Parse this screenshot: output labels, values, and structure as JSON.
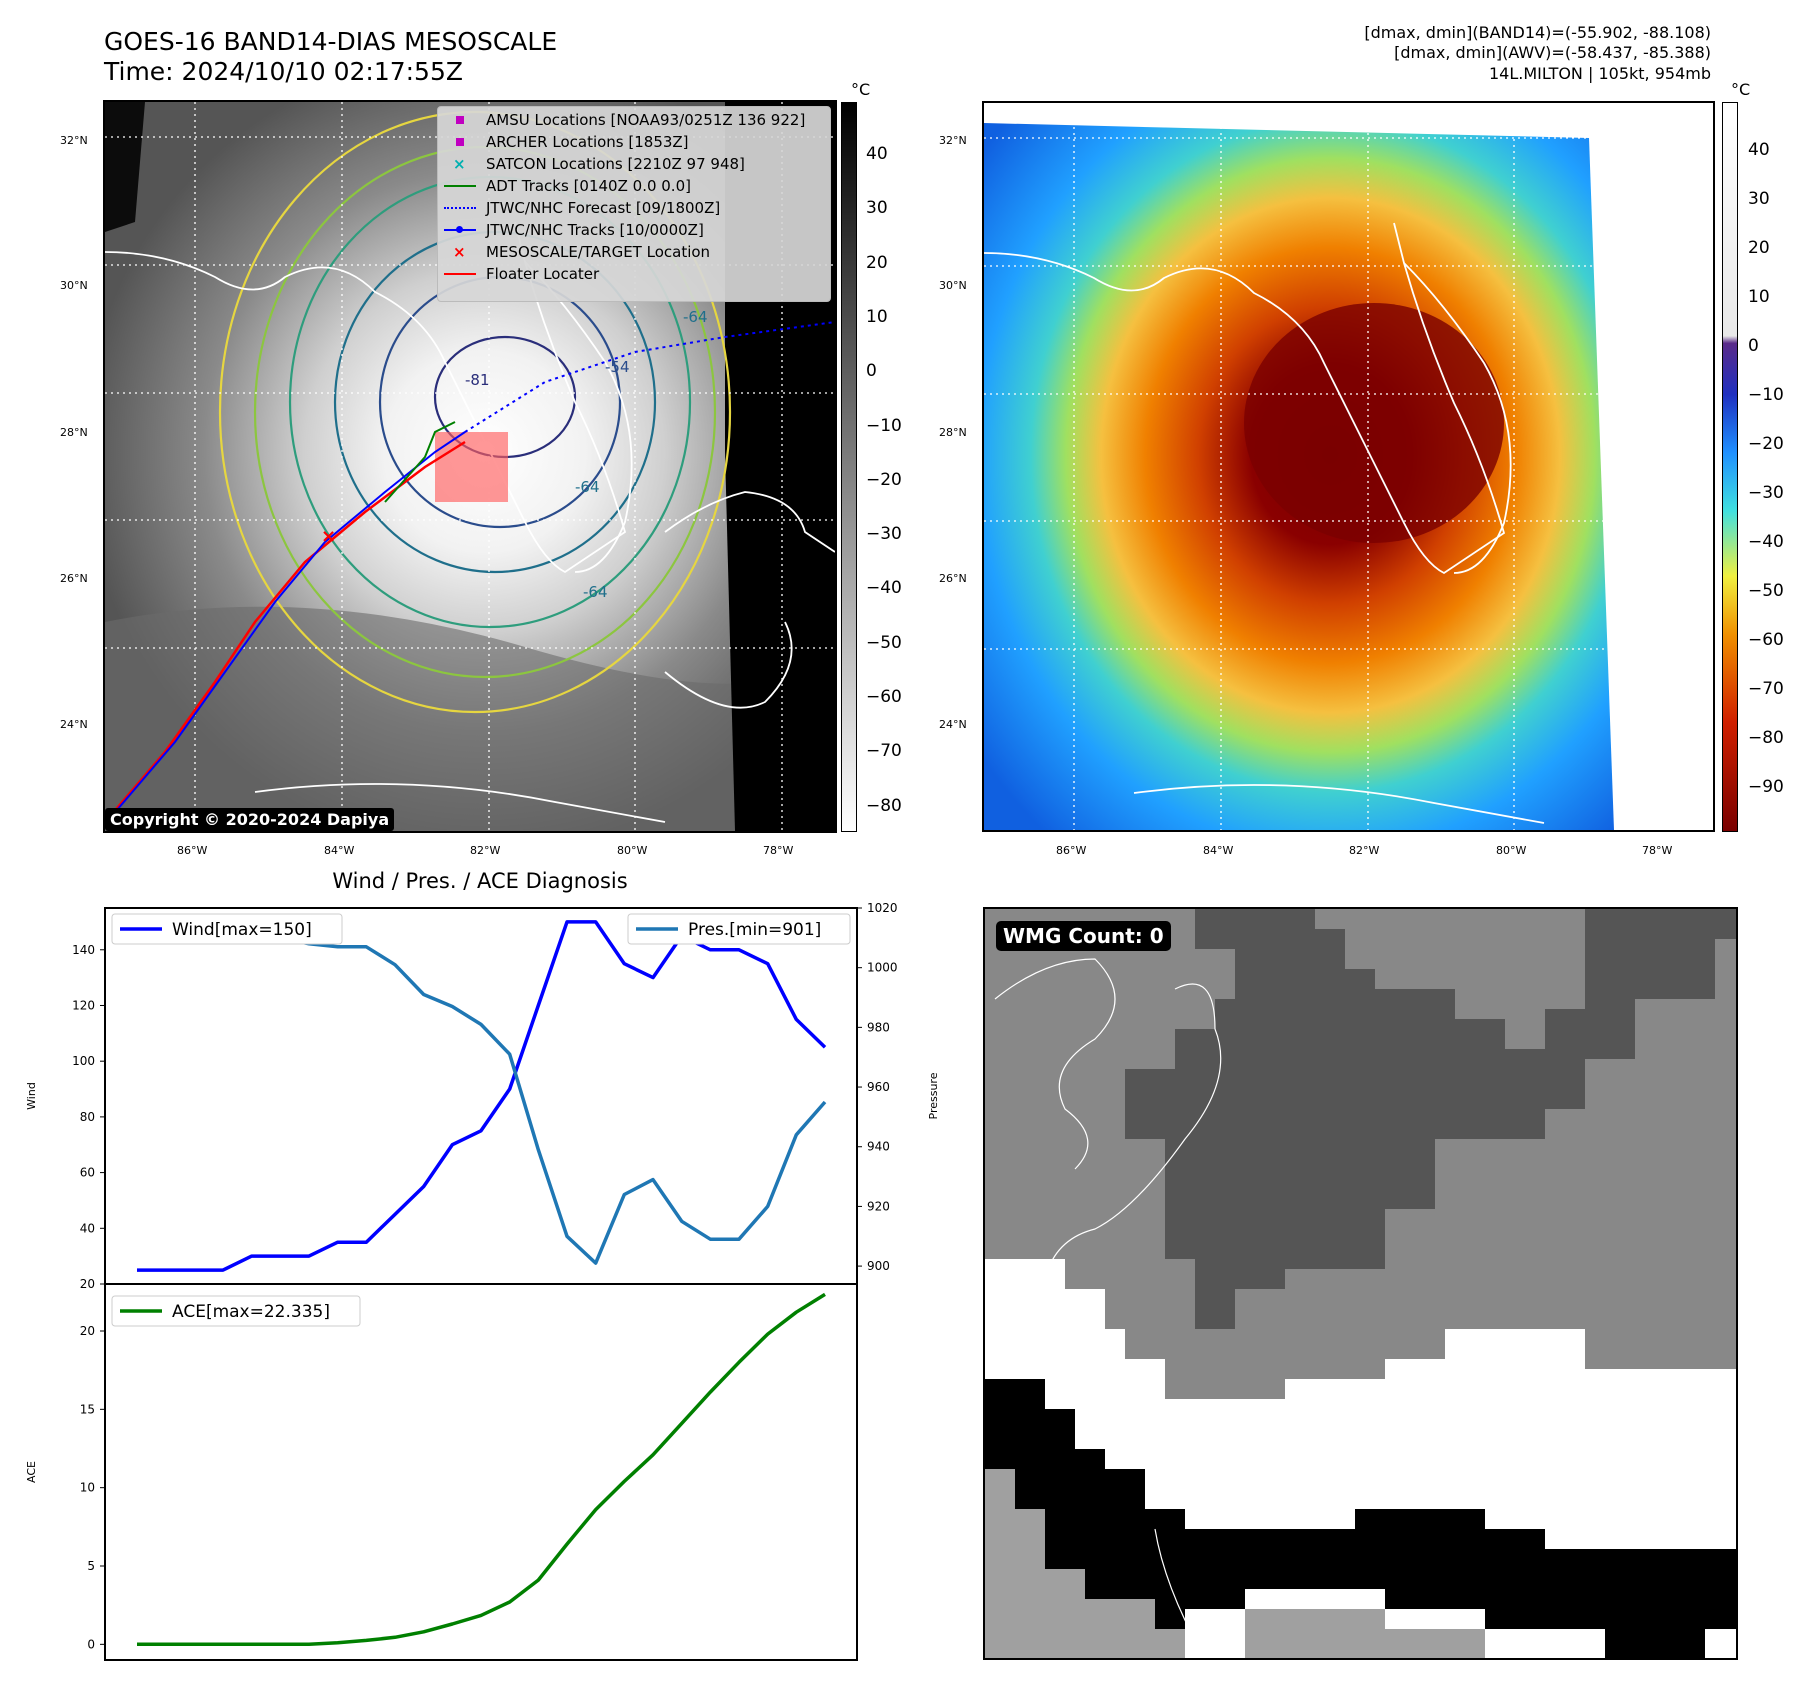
{
  "header": {
    "title_line1": "GOES-16 BAND14-DIAS MESOSCALE",
    "title_line2": "Time: 2024/10/10 02:17:55Z",
    "stats_line1": "[dmax, dmin](BAND14)=(-55.902, -88.108)",
    "stats_line2": "[dmax, dmin](AWV)=(-58.437, -85.388)",
    "stats_line3": "14L.MILTON | 105kt, 954mb"
  },
  "map_axes": {
    "lat_labels": [
      "32°N",
      "30°N",
      "28°N",
      "26°N",
      "24°N"
    ],
    "lon_labels": [
      "86°W",
      "84°W",
      "82°W",
      "80°W",
      "78°W"
    ]
  },
  "ir_panel": {
    "colorbar_unit": "°C",
    "colorbar_ticks": [
      "40",
      "30",
      "20",
      "10",
      "0",
      "−10",
      "−20",
      "−30",
      "−40",
      "−50",
      "−60",
      "−70",
      "−80"
    ],
    "contour_labels": [
      "-81",
      "-64",
      "-64",
      "-64",
      "-54"
    ],
    "legend": [
      {
        "label": "AMSU Locations [NOAA93/0251Z 136 922]",
        "color": "#c000c0"
      },
      {
        "label": "ARCHER Locations [1853Z]",
        "color": "#c000c0"
      },
      {
        "label": "SATCON Locations [2210Z 97 948]",
        "color": "#00b0b0"
      },
      {
        "label": "ADT Tracks [0140Z 0.0 0.0]",
        "color": "#008000"
      },
      {
        "label": "JTWC/NHC Forecast [09/1800Z]",
        "color": "#0000ff"
      },
      {
        "label": "JTWC/NHC Tracks [10/0000Z]",
        "color": "#0000ff"
      },
      {
        "label": "MESOSCALE/TARGET Location",
        "color": "#ff0000"
      },
      {
        "label": "Floater Locater",
        "color": "#ff0000"
      }
    ],
    "copyright": "Copyright © 2020-2024 Dapiya"
  },
  "awv_panel": {
    "colorbar_unit": "°C",
    "colorbar_ticks": [
      "40",
      "30",
      "20",
      "10",
      "0",
      "−10",
      "−20",
      "−30",
      "−40",
      "−50",
      "−60",
      "−70",
      "−80",
      "−90"
    ]
  },
  "wmg_panel": {
    "label": "WMG Count: 0"
  },
  "chart_data": [
    {
      "type": "line",
      "title": "Wind / Pres. / ACE Diagnosis",
      "xlabel": "",
      "ylabel": "Wind",
      "ylabel_right": "Pressure",
      "ylim": [
        20,
        155
      ],
      "ylim_right": [
        894,
        1020
      ],
      "yticks": [
        20,
        40,
        60,
        80,
        100,
        120,
        140
      ],
      "yticks_right": [
        900,
        920,
        940,
        960,
        980,
        1000,
        1020
      ],
      "x": [
        0,
        1,
        2,
        3,
        4,
        5,
        6,
        7,
        8,
        9,
        10,
        11,
        12,
        13,
        14,
        15,
        16,
        17,
        18,
        19,
        20,
        21,
        22,
        23,
        24
      ],
      "series": [
        {
          "name": "Wind[max=150]",
          "color": "#0000ff",
          "values": [
            25,
            25,
            25,
            25,
            30,
            30,
            30,
            35,
            35,
            45,
            55,
            70,
            75,
            90,
            120,
            150,
            150,
            135,
            130,
            145,
            140,
            140,
            135,
            115,
            105
          ]
        },
        {
          "name": "Pres.[min=901]",
          "color": "#1f77b4",
          "values": [
            1015,
            1015,
            1015,
            1015,
            1010,
            1010,
            1008,
            1007,
            1007,
            1001,
            991,
            987,
            981,
            971,
            939,
            910,
            901,
            924,
            929,
            915,
            909,
            909,
            920,
            944,
            955
          ]
        }
      ]
    },
    {
      "type": "line",
      "title": "",
      "xlabel": "",
      "ylabel": "ACE",
      "ylim": [
        -1,
        23
      ],
      "yticks": [
        0,
        5,
        10,
        15,
        20
      ],
      "x": [
        0,
        1,
        2,
        3,
        4,
        5,
        6,
        7,
        8,
        9,
        10,
        11,
        12,
        13,
        14,
        15,
        16,
        17,
        18,
        19,
        20,
        21,
        22,
        23,
        24
      ],
      "series": [
        {
          "name": "ACE[max=22.335]",
          "color": "#008000",
          "values": [
            0,
            0,
            0,
            0,
            0,
            0,
            0,
            0.1,
            0.25,
            0.45,
            0.8,
            1.3,
            1.85,
            2.7,
            4.1,
            6.4,
            8.6,
            10.4,
            12.1,
            14.1,
            16.1,
            18.0,
            19.8,
            21.2,
            22.335
          ]
        }
      ]
    }
  ]
}
